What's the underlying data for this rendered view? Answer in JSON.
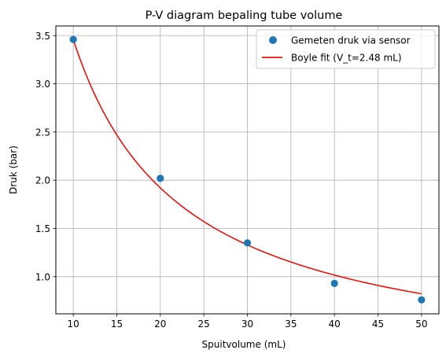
{
  "chart_data": {
    "type": "scatter",
    "title": "P-V diagram bepaling tube volume",
    "xlabel": "Spuitvolume (mL)",
    "ylabel": "Druk (bar)",
    "xlim": [
      8.0,
      52.0
    ],
    "ylim": [
      0.615,
      3.6
    ],
    "xticks": [
      10,
      15,
      20,
      25,
      30,
      35,
      40,
      45,
      50
    ],
    "yticks": [
      1.0,
      1.5,
      2.0,
      2.5,
      3.0,
      3.5
    ],
    "xtick_labels": [
      "10",
      "15",
      "20",
      "25",
      "30",
      "35",
      "40",
      "45",
      "50"
    ],
    "ytick_labels": [
      "1.0",
      "1.5",
      "2.0",
      "2.5",
      "3.0",
      "3.5"
    ],
    "grid": true,
    "legend_position": "top-right",
    "series": [
      {
        "name": "Gemeten druk via sensor",
        "kind": "scatter",
        "color": "#1f77b4",
        "x": [
          10,
          20,
          30,
          40,
          50
        ],
        "y": [
          3.46,
          2.02,
          1.35,
          0.93,
          0.76
        ]
      },
      {
        "name": "Boyle fit (V_t=2.48 mL)",
        "kind": "line",
        "color": "#e8120c",
        "x_range": [
          10,
          50
        ],
        "V_t": 2.48,
        "y_at_x_min": 3.46
      }
    ]
  }
}
